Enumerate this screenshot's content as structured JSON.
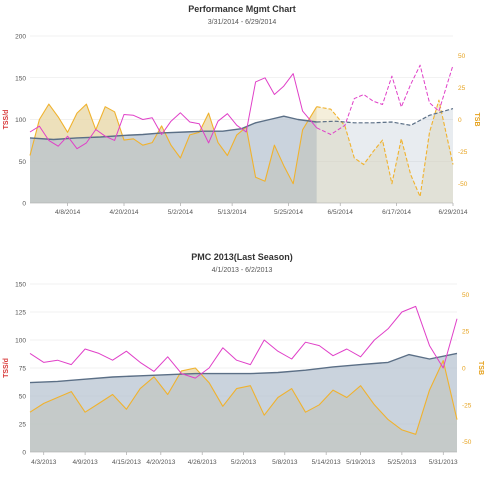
{
  "colors": {
    "ctl_line": "#5b6f86",
    "ctl_fill": "#b4c1ce",
    "atl": "#e040c8",
    "tsb": "#f0b22e",
    "tsb_fill": "#e7d6a4",
    "axis_left": "#d83a3a",
    "axis_right": "#e6a21e",
    "grid": "#e4e4e4",
    "text": "#555555"
  },
  "chart_data": [
    {
      "type": "line",
      "title": "Performance Mgmt Chart",
      "subtitle": "3/31/2014 - 6/29/2014",
      "ylabel": "TSS/d",
      "y2label": "TSB",
      "ylim": [
        0,
        200
      ],
      "yticks": [
        "0",
        "50",
        "100",
        "150",
        "200"
      ],
      "y2lim": [
        -65,
        65
      ],
      "y2ticks": [
        "50",
        "25",
        "0",
        "-25",
        "-50"
      ],
      "xlim": [
        "3/31/2014",
        "6/29/2014"
      ],
      "xticks": [
        "4/8/2014",
        "4/20/2014",
        "5/2/2014",
        "5/13/2014",
        "5/25/2014",
        "6/5/2014",
        "6/17/2014",
        "6/29/2014"
      ],
      "projection_start": "6/1/2014",
      "series": [
        {
          "key": "ctl",
          "style": "area",
          "x": [
            "3/31/2014",
            "4/5/2014",
            "4/10/2014",
            "4/15/2014",
            "4/20/2014",
            "4/24/2014",
            "4/28/2014",
            "5/3/2014",
            "5/7/2014",
            "5/11/2014",
            "5/15/2014",
            "5/18/2014",
            "5/21/2014",
            "5/24/2014",
            "5/27/2014",
            "5/31/2014",
            "6/4/2014",
            "6/8/2014",
            "6/12/2014",
            "6/16/2014",
            "6/20/2014",
            "6/24/2014",
            "6/29/2014"
          ],
          "values": [
            78,
            76,
            78,
            79,
            81,
            82,
            84,
            85,
            86,
            86,
            89,
            96,
            100,
            104,
            100,
            97,
            98,
            96,
            96,
            97,
            93,
            105,
            113
          ]
        },
        {
          "key": "atl",
          "style": "line",
          "x": [
            "3/31/2014",
            "4/2/2014",
            "4/4/2014",
            "4/6/2014",
            "4/8/2014",
            "4/10/2014",
            "4/12/2014",
            "4/14/2014",
            "4/16/2014",
            "4/18/2014",
            "4/20/2014",
            "4/22/2014",
            "4/24/2014",
            "4/26/2014",
            "4/28/2014",
            "4/30/2014",
            "5/2/2014",
            "5/4/2014",
            "5/6/2014",
            "5/8/2014",
            "5/10/2014",
            "5/12/2014",
            "5/14/2014",
            "5/16/2014",
            "5/18/2014",
            "5/20/2014",
            "5/22/2014",
            "5/24/2014",
            "5/26/2014",
            "5/28/2014",
            "5/31/2014",
            "6/3/2014",
            "6/6/2014",
            "6/8/2014",
            "6/10/2014",
            "6/12/2014",
            "6/14/2014",
            "6/16/2014",
            "6/18/2014",
            "6/20/2014",
            "6/22/2014",
            "6/24/2014",
            "6/26/2014",
            "6/29/2014"
          ],
          "values": [
            85,
            92,
            75,
            68,
            80,
            65,
            72,
            88,
            80,
            75,
            106,
            105,
            100,
            102,
            82,
            98,
            108,
            97,
            95,
            72,
            98,
            107,
            93,
            85,
            145,
            150,
            130,
            140,
            155,
            110,
            90,
            82,
            93,
            125,
            130,
            122,
            118,
            152,
            115,
            142,
            165,
            120,
            110,
            165
          ]
        },
        {
          "key": "tsb",
          "style": "area",
          "axis": "y2",
          "x": [
            "3/31/2014",
            "4/2/2014",
            "4/4/2014",
            "4/6/2014",
            "4/8/2014",
            "4/10/2014",
            "4/12/2014",
            "4/14/2014",
            "4/16/2014",
            "4/18/2014",
            "4/20/2014",
            "4/22/2014",
            "4/24/2014",
            "4/26/2014",
            "4/28/2014",
            "4/30/2014",
            "5/2/2014",
            "5/4/2014",
            "5/6/2014",
            "5/8/2014",
            "5/10/2014",
            "5/12/2014",
            "5/14/2014",
            "5/16/2014",
            "5/18/2014",
            "5/20/2014",
            "5/22/2014",
            "5/24/2014",
            "5/26/2014",
            "5/28/2014",
            "5/31/2014",
            "6/3/2014",
            "6/6/2014",
            "6/8/2014",
            "6/10/2014",
            "6/12/2014",
            "6/14/2014",
            "6/16/2014",
            "6/18/2014",
            "6/20/2014",
            "6/22/2014",
            "6/24/2014",
            "6/26/2014",
            "6/29/2014"
          ],
          "values": [
            -28,
            0,
            12,
            2,
            -10,
            5,
            12,
            -8,
            10,
            6,
            -16,
            -15,
            -20,
            -18,
            -5,
            -20,
            -30,
            -12,
            -10,
            5,
            -18,
            -28,
            -12,
            -6,
            -45,
            -48,
            -20,
            -36,
            -50,
            -8,
            10,
            8,
            -5,
            -30,
            -35,
            -25,
            -16,
            -50,
            -15,
            -43,
            -60,
            -10,
            15,
            -35
          ]
        }
      ]
    },
    {
      "type": "line",
      "title": "PMC 2013(Last Season)",
      "subtitle": "4/1/2013 - 6/2/2013",
      "ylabel": "TSS/d",
      "y2label": "TSB",
      "ylim": [
        0,
        150
      ],
      "yticks": [
        "0",
        "25",
        "50",
        "75",
        "100",
        "125",
        "150"
      ],
      "y2lim": [
        -57,
        57
      ],
      "y2ticks": [
        "50",
        "25",
        "0",
        "-25",
        "-50"
      ],
      "xlim": [
        "4/1/2013",
        "6/2/2013"
      ],
      "xticks": [
        "4/3/2013",
        "4/9/2013",
        "4/15/2013",
        "4/20/2013",
        "4/26/2013",
        "5/2/2013",
        "5/8/2013",
        "5/14/2013",
        "5/19/2013",
        "5/25/2013",
        "5/31/2013"
      ],
      "series": [
        {
          "key": "ctl",
          "style": "area",
          "x": [
            "4/1/2013",
            "4/5/2013",
            "4/9/2013",
            "4/13/2013",
            "4/17/2013",
            "4/21/2013",
            "4/25/2013",
            "4/29/2013",
            "5/3/2013",
            "5/7/2013",
            "5/11/2013",
            "5/15/2013",
            "5/19/2013",
            "5/23/2013",
            "5/26/2013",
            "5/29/2013",
            "6/2/2013"
          ],
          "values": [
            62,
            63,
            65,
            67,
            68,
            69,
            70,
            70,
            70,
            71,
            73,
            76,
            78,
            80,
            87,
            83,
            88
          ]
        },
        {
          "key": "atl",
          "style": "line",
          "x": [
            "4/1/2013",
            "4/3/2013",
            "4/5/2013",
            "4/7/2013",
            "4/9/2013",
            "4/11/2013",
            "4/13/2013",
            "4/15/2013",
            "4/17/2013",
            "4/19/2013",
            "4/21/2013",
            "4/23/2013",
            "4/25/2013",
            "4/27/2013",
            "4/29/2013",
            "5/1/2013",
            "5/3/2013",
            "5/5/2013",
            "5/7/2013",
            "5/9/2013",
            "5/11/2013",
            "5/13/2013",
            "5/15/2013",
            "5/17/2013",
            "5/19/2013",
            "5/21/2013",
            "5/23/2013",
            "5/25/2013",
            "5/27/2013",
            "5/29/2013",
            "5/31/2013",
            "6/2/2013"
          ],
          "values": [
            88,
            80,
            82,
            78,
            92,
            88,
            82,
            90,
            80,
            72,
            85,
            70,
            66,
            75,
            93,
            82,
            78,
            100,
            90,
            83,
            98,
            95,
            86,
            92,
            85,
            100,
            110,
            125,
            130,
            95,
            75,
            119
          ]
        },
        {
          "key": "tsb",
          "style": "area",
          "axis": "y2",
          "x": [
            "4/1/2013",
            "4/3/2013",
            "4/5/2013",
            "4/7/2013",
            "4/9/2013",
            "4/11/2013",
            "4/13/2013",
            "4/15/2013",
            "4/17/2013",
            "4/19/2013",
            "4/21/2013",
            "4/23/2013",
            "4/25/2013",
            "4/27/2013",
            "4/29/2013",
            "5/1/2013",
            "5/3/2013",
            "5/5/2013",
            "5/7/2013",
            "5/9/2013",
            "5/11/2013",
            "5/13/2013",
            "5/15/2013",
            "5/17/2013",
            "5/19/2013",
            "5/21/2013",
            "5/23/2013",
            "5/25/2013",
            "5/27/2013",
            "5/29/2013",
            "5/31/2013",
            "6/2/2013"
          ],
          "values": [
            -30,
            -24,
            -20,
            -16,
            -30,
            -24,
            -18,
            -28,
            -14,
            -6,
            -18,
            -2,
            0,
            -10,
            -26,
            -14,
            -12,
            -32,
            -20,
            -14,
            -30,
            -25,
            -15,
            -20,
            -12,
            -25,
            -35,
            -42,
            -45,
            -15,
            5,
            -35
          ]
        }
      ]
    }
  ]
}
